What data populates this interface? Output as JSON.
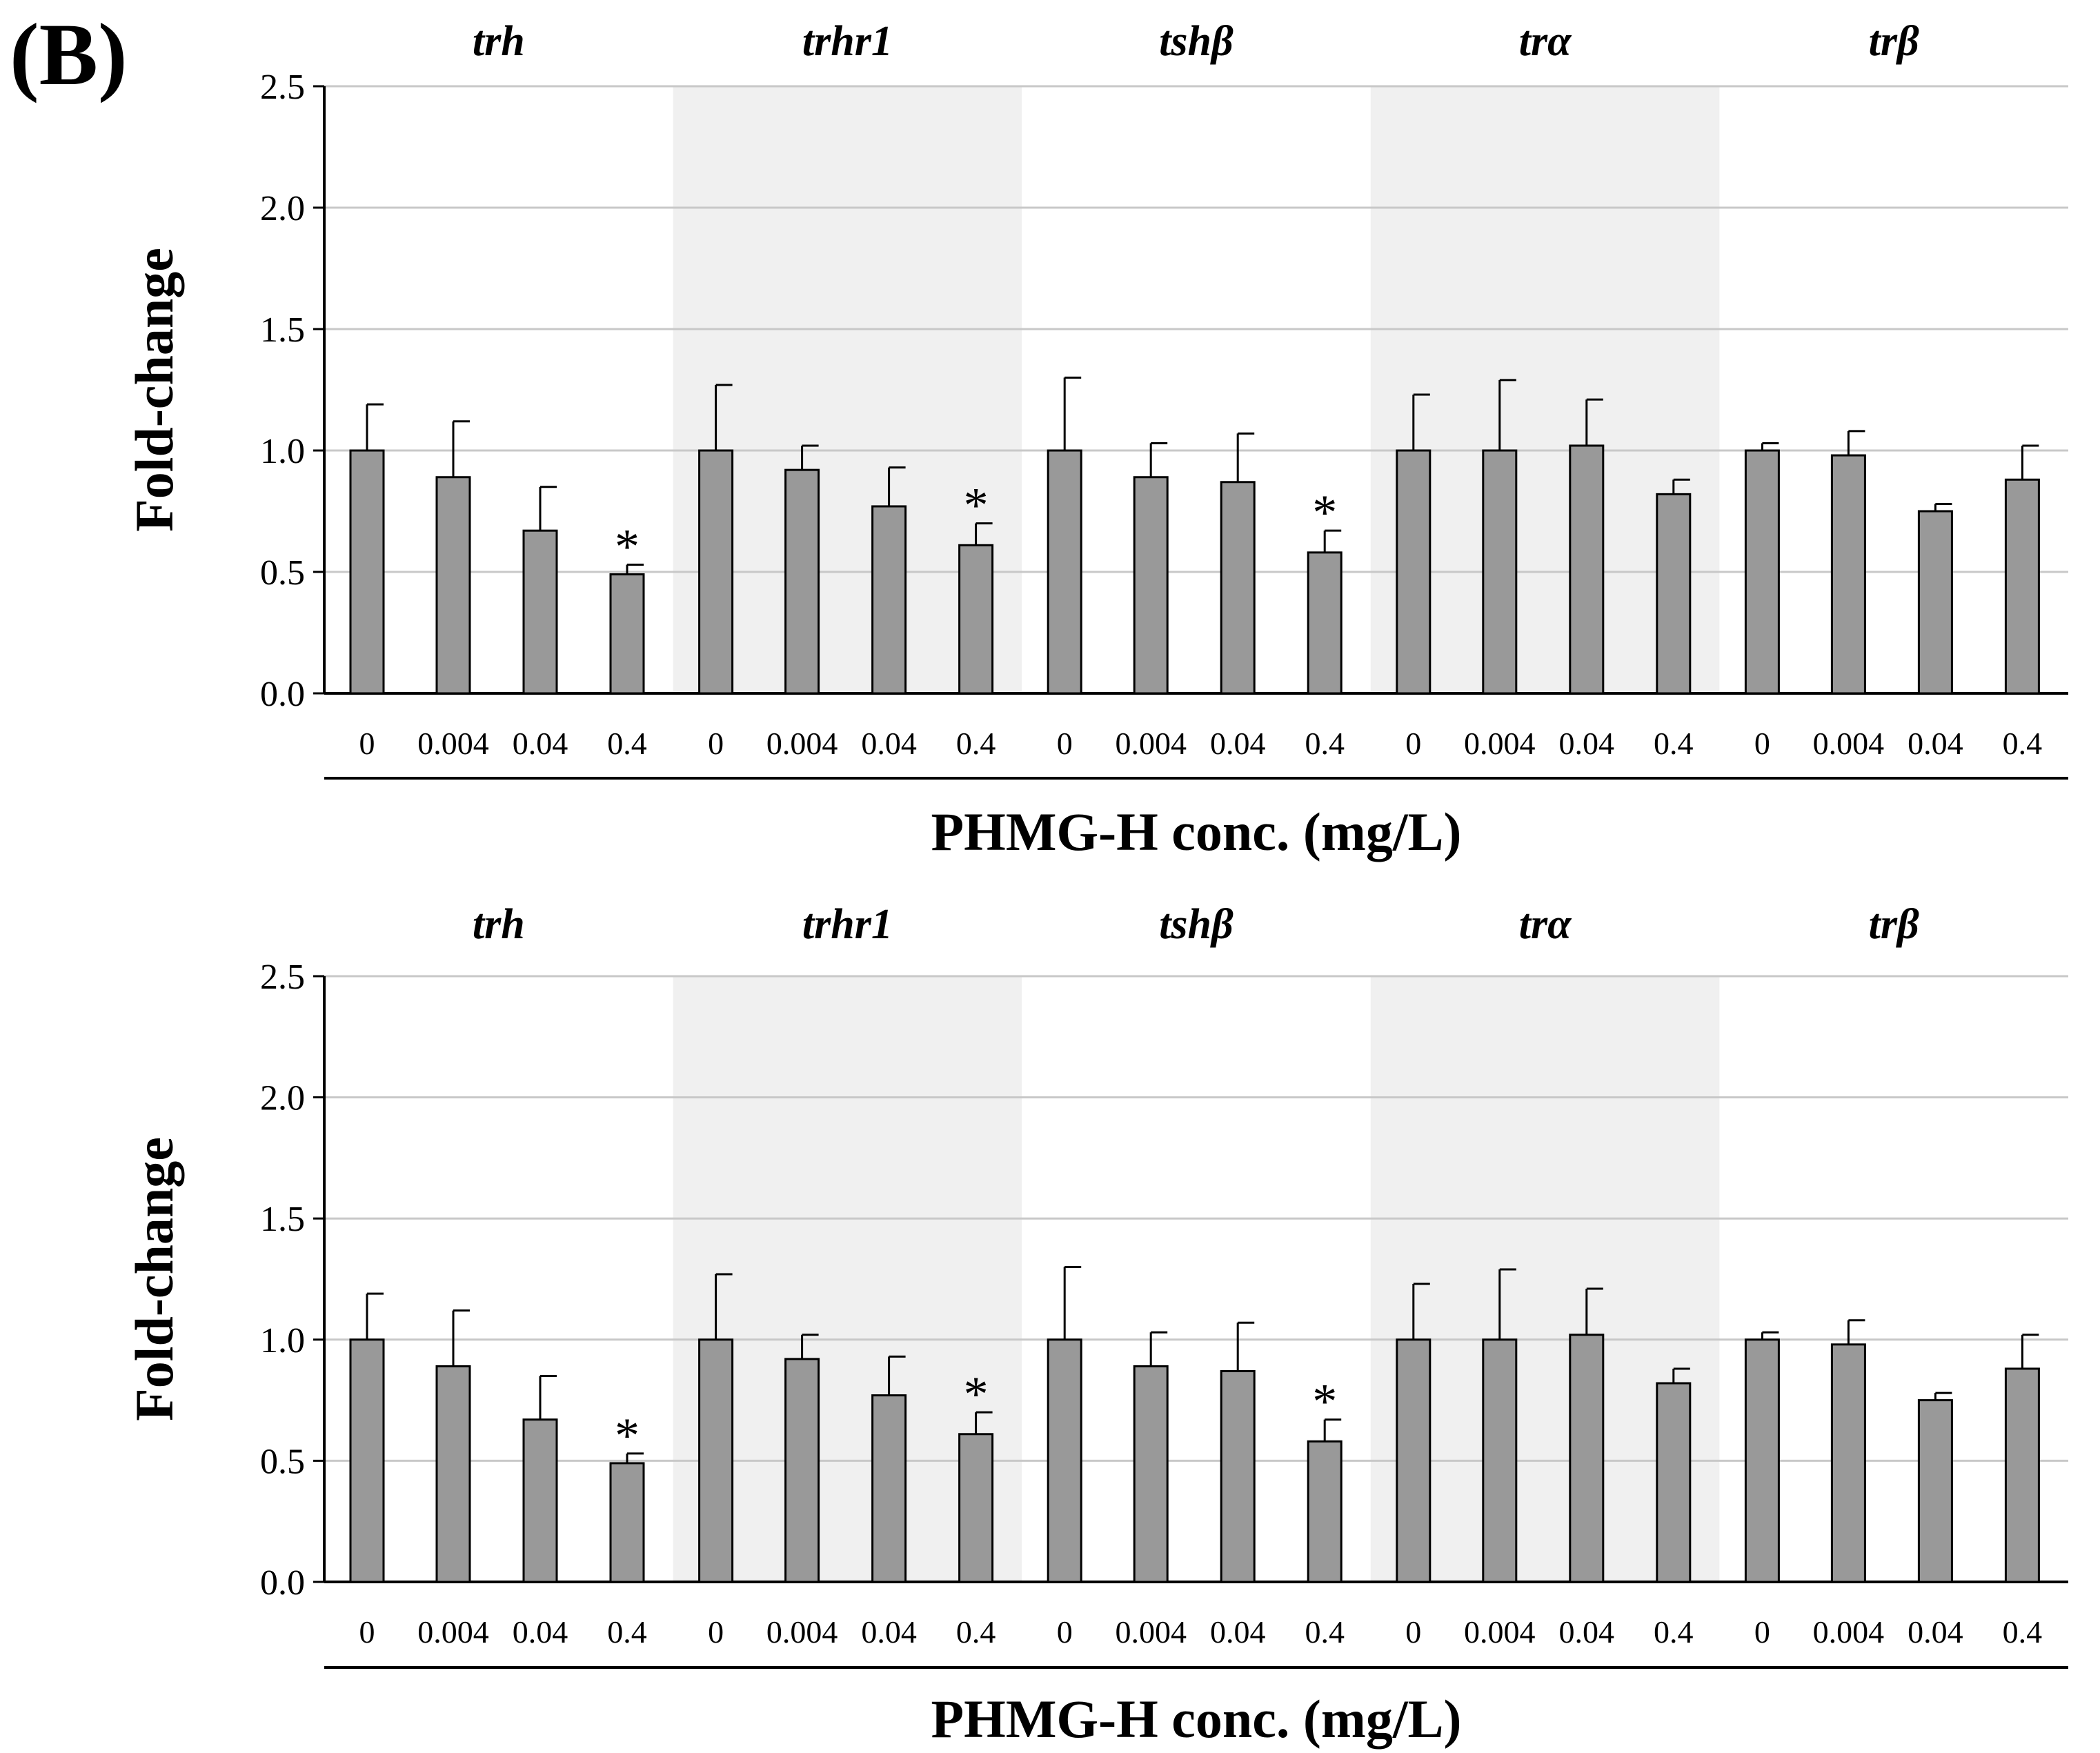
{
  "panel_label": "(B)",
  "colors": {
    "bar_fill": "#999999",
    "bar_stroke": "#000000",
    "shade": "#f0f0f0",
    "grid": "#c8c8c8"
  },
  "chart_data": [
    {
      "type": "bar",
      "title": "",
      "xlabel": "PHMG-H conc. (mg/L)",
      "ylabel": "Fold-change",
      "ylim": [
        0,
        2.5
      ],
      "yticks": [
        "0.0",
        "0.5",
        "1.0",
        "1.5",
        "2.0",
        "2.5"
      ],
      "grid": true,
      "groups": [
        {
          "gene": "trh",
          "shaded": false,
          "categories": [
            "0",
            "0.004",
            "0.04",
            "0.4"
          ],
          "values": [
            1.0,
            0.89,
            0.67,
            0.49
          ],
          "errors": [
            0.19,
            0.23,
            0.18,
            0.04
          ],
          "significant": [
            false,
            false,
            false,
            true
          ]
        },
        {
          "gene": "trhr1",
          "shaded": true,
          "categories": [
            "0",
            "0.004",
            "0.04",
            "0.4"
          ],
          "values": [
            1.0,
            0.92,
            0.77,
            0.61
          ],
          "errors": [
            0.27,
            0.1,
            0.16,
            0.09
          ],
          "significant": [
            false,
            false,
            false,
            true
          ]
        },
        {
          "gene": "tshβ",
          "shaded": false,
          "categories": [
            "0",
            "0.004",
            "0.04",
            "0.4"
          ],
          "values": [
            1.0,
            0.89,
            0.87,
            0.58
          ],
          "errors": [
            0.3,
            0.14,
            0.2,
            0.09
          ],
          "significant": [
            false,
            false,
            false,
            true
          ]
        },
        {
          "gene": "trα",
          "shaded": true,
          "categories": [
            "0",
            "0.004",
            "0.04",
            "0.4"
          ],
          "values": [
            1.0,
            1.0,
            1.02,
            0.82
          ],
          "errors": [
            0.23,
            0.29,
            0.19,
            0.06
          ],
          "significant": [
            false,
            false,
            false,
            false
          ]
        },
        {
          "gene": "trβ",
          "shaded": false,
          "categories": [
            "0",
            "0.004",
            "0.04",
            "0.4"
          ],
          "values": [
            1.0,
            0.98,
            0.75,
            0.88
          ],
          "errors": [
            0.03,
            0.1,
            0.03,
            0.14
          ],
          "significant": [
            false,
            false,
            false,
            false
          ]
        }
      ]
    },
    {
      "type": "bar",
      "title": "",
      "xlabel": "PHMG-H conc. (mg/L)",
      "ylabel": "Fold-change",
      "ylim": [
        0,
        2.5
      ],
      "yticks": [
        "0.0",
        "0.5",
        "1.0",
        "1.5",
        "2.0",
        "2.5"
      ],
      "grid": true,
      "groups": [
        {
          "gene": "trh",
          "shaded": false,
          "categories": [
            "0",
            "0.004",
            "0.04",
            "0.4"
          ],
          "values": [
            1.0,
            0.89,
            0.67,
            0.49
          ],
          "errors": [
            0.19,
            0.23,
            0.18,
            0.04
          ],
          "significant": [
            false,
            false,
            false,
            true
          ]
        },
        {
          "gene": "trhr1",
          "shaded": true,
          "categories": [
            "0",
            "0.004",
            "0.04",
            "0.4"
          ],
          "values": [
            1.0,
            0.92,
            0.77,
            0.61
          ],
          "errors": [
            0.27,
            0.1,
            0.16,
            0.09
          ],
          "significant": [
            false,
            false,
            false,
            true
          ]
        },
        {
          "gene": "tshβ",
          "shaded": false,
          "categories": [
            "0",
            "0.004",
            "0.04",
            "0.4"
          ],
          "values": [
            1.0,
            0.89,
            0.87,
            0.58
          ],
          "errors": [
            0.3,
            0.14,
            0.2,
            0.09
          ],
          "significant": [
            false,
            false,
            false,
            true
          ]
        },
        {
          "gene": "trα",
          "shaded": true,
          "categories": [
            "0",
            "0.004",
            "0.04",
            "0.4"
          ],
          "values": [
            1.0,
            1.0,
            1.02,
            0.82
          ],
          "errors": [
            0.23,
            0.29,
            0.19,
            0.06
          ],
          "significant": [
            false,
            false,
            false,
            false
          ]
        },
        {
          "gene": "trβ",
          "shaded": false,
          "categories": [
            "0",
            "0.004",
            "0.04",
            "0.4"
          ],
          "values": [
            1.0,
            0.98,
            0.75,
            0.88
          ],
          "errors": [
            0.03,
            0.1,
            0.03,
            0.14
          ],
          "significant": [
            false,
            false,
            false,
            false
          ]
        }
      ]
    }
  ]
}
